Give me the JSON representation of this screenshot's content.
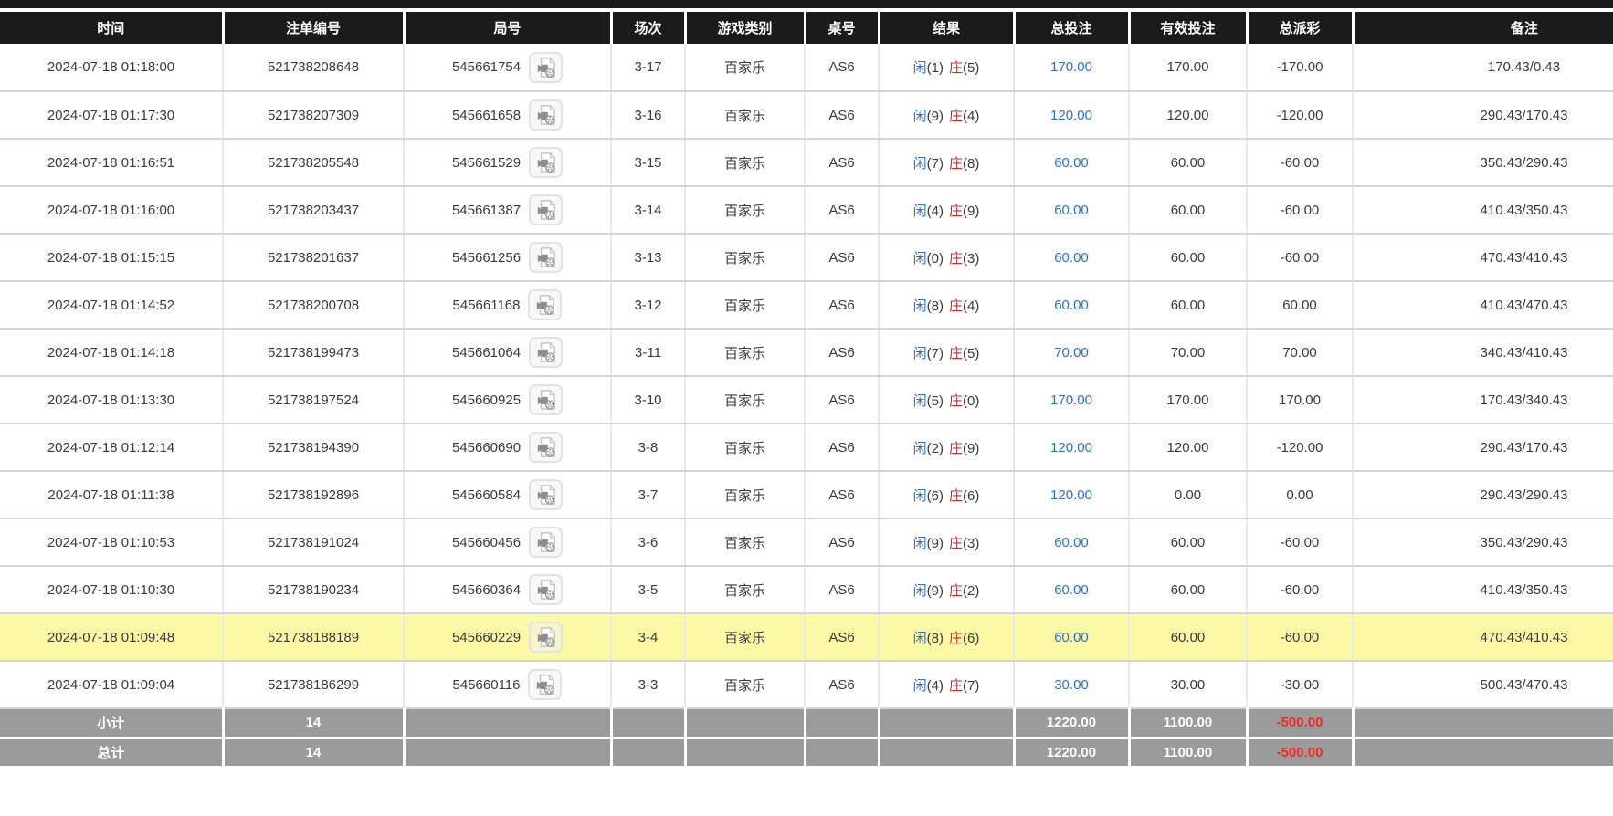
{
  "colors": {
    "header_bg": "#1b1b1b",
    "row_highlight": "#fbf9a5",
    "footer_bg": "#9b9b9b",
    "bet_blue": "#2d6fd2",
    "negative_red": "#e02b2b",
    "banker_red": "#d42a2a"
  },
  "table": {
    "columns": [
      {
        "key": "time",
        "label": "时间"
      },
      {
        "key": "bet-id",
        "label": "注单编号"
      },
      {
        "key": "round-id",
        "label": "局号"
      },
      {
        "key": "session",
        "label": "场次"
      },
      {
        "key": "game-type",
        "label": "游戏类别"
      },
      {
        "key": "table-no",
        "label": "桌号"
      },
      {
        "key": "result",
        "label": "结果"
      },
      {
        "key": "total-bet",
        "label": "总投注"
      },
      {
        "key": "valid-bet",
        "label": "有效投注"
      },
      {
        "key": "payout",
        "label": "总派彩"
      },
      {
        "key": "remark",
        "label": "备注"
      }
    ],
    "rows": [
      {
        "time": "2024-07-18 01:18:00",
        "bet_id": "521738208648",
        "round_id": "545661754",
        "session": "3-17",
        "game": "百家乐",
        "table_no": "AS6",
        "result_player": "闲(1)",
        "result_banker": "庄(5)",
        "total_bet": "170.00",
        "valid_bet": "170.00",
        "payout": "-170.00",
        "remark": "170.43/0.43",
        "highlighted": false
      },
      {
        "time": "2024-07-18 01:17:30",
        "bet_id": "521738207309",
        "round_id": "545661658",
        "session": "3-16",
        "game": "百家乐",
        "table_no": "AS6",
        "result_player": "闲(9)",
        "result_banker": "庄(4)",
        "total_bet": "120.00",
        "valid_bet": "120.00",
        "payout": "-120.00",
        "remark": "290.43/170.43",
        "highlighted": false
      },
      {
        "time": "2024-07-18 01:16:51",
        "bet_id": "521738205548",
        "round_id": "545661529",
        "session": "3-15",
        "game": "百家乐",
        "table_no": "AS6",
        "result_player": "闲(7)",
        "result_banker": "庄(8)",
        "total_bet": "60.00",
        "valid_bet": "60.00",
        "payout": "-60.00",
        "remark": "350.43/290.43",
        "highlighted": false
      },
      {
        "time": "2024-07-18 01:16:00",
        "bet_id": "521738203437",
        "round_id": "545661387",
        "session": "3-14",
        "game": "百家乐",
        "table_no": "AS6",
        "result_player": "闲(4)",
        "result_banker": "庄(9)",
        "total_bet": "60.00",
        "valid_bet": "60.00",
        "payout": "-60.00",
        "remark": "410.43/350.43",
        "highlighted": false
      },
      {
        "time": "2024-07-18 01:15:15",
        "bet_id": "521738201637",
        "round_id": "545661256",
        "session": "3-13",
        "game": "百家乐",
        "table_no": "AS6",
        "result_player": "闲(0)",
        "result_banker": "庄(3)",
        "total_bet": "60.00",
        "valid_bet": "60.00",
        "payout": "-60.00",
        "remark": "470.43/410.43",
        "highlighted": false
      },
      {
        "time": "2024-07-18 01:14:52",
        "bet_id": "521738200708",
        "round_id": "545661168",
        "session": "3-12",
        "game": "百家乐",
        "table_no": "AS6",
        "result_player": "闲(8)",
        "result_banker": "庄(4)",
        "total_bet": "60.00",
        "valid_bet": "60.00",
        "payout": "60.00",
        "remark": "410.43/470.43",
        "highlighted": false
      },
      {
        "time": "2024-07-18 01:14:18",
        "bet_id": "521738199473",
        "round_id": "545661064",
        "session": "3-11",
        "game": "百家乐",
        "table_no": "AS6",
        "result_player": "闲(7)",
        "result_banker": "庄(5)",
        "total_bet": "70.00",
        "valid_bet": "70.00",
        "payout": "70.00",
        "remark": "340.43/410.43",
        "highlighted": false
      },
      {
        "time": "2024-07-18 01:13:30",
        "bet_id": "521738197524",
        "round_id": "545660925",
        "session": "3-10",
        "game": "百家乐",
        "table_no": "AS6",
        "result_player": "闲(5)",
        "result_banker": "庄(0)",
        "total_bet": "170.00",
        "valid_bet": "170.00",
        "payout": "170.00",
        "remark": "170.43/340.43",
        "highlighted": false
      },
      {
        "time": "2024-07-18 01:12:14",
        "bet_id": "521738194390",
        "round_id": "545660690",
        "session": "3-8",
        "game": "百家乐",
        "table_no": "AS6",
        "result_player": "闲(2)",
        "result_banker": "庄(9)",
        "total_bet": "120.00",
        "valid_bet": "120.00",
        "payout": "-120.00",
        "remark": "290.43/170.43",
        "highlighted": false
      },
      {
        "time": "2024-07-18 01:11:38",
        "bet_id": "521738192896",
        "round_id": "545660584",
        "session": "3-7",
        "game": "百家乐",
        "table_no": "AS6",
        "result_player": "闲(6)",
        "result_banker": "庄(6)",
        "total_bet": "120.00",
        "valid_bet": "0.00",
        "payout": "0.00",
        "remark": "290.43/290.43",
        "highlighted": false
      },
      {
        "time": "2024-07-18 01:10:53",
        "bet_id": "521738191024",
        "round_id": "545660456",
        "session": "3-6",
        "game": "百家乐",
        "table_no": "AS6",
        "result_player": "闲(9)",
        "result_banker": "庄(3)",
        "total_bet": "60.00",
        "valid_bet": "60.00",
        "payout": "-60.00",
        "remark": "350.43/290.43",
        "highlighted": false
      },
      {
        "time": "2024-07-18 01:10:30",
        "bet_id": "521738190234",
        "round_id": "545660364",
        "session": "3-5",
        "game": "百家乐",
        "table_no": "AS6",
        "result_player": "闲(9)",
        "result_banker": "庄(2)",
        "total_bet": "60.00",
        "valid_bet": "60.00",
        "payout": "-60.00",
        "remark": "410.43/350.43",
        "highlighted": false
      },
      {
        "time": "2024-07-18 01:09:48",
        "bet_id": "521738188189",
        "round_id": "545660229",
        "session": "3-4",
        "game": "百家乐",
        "table_no": "AS6",
        "result_player": "闲(8)",
        "result_banker": "庄(6)",
        "total_bet": "60.00",
        "valid_bet": "60.00",
        "payout": "-60.00",
        "remark": "470.43/410.43",
        "highlighted": true
      },
      {
        "time": "2024-07-18 01:09:04",
        "bet_id": "521738186299",
        "round_id": "545660116",
        "session": "3-3",
        "game": "百家乐",
        "table_no": "AS6",
        "result_player": "闲(4)",
        "result_banker": "庄(7)",
        "total_bet": "30.00",
        "valid_bet": "30.00",
        "payout": "-30.00",
        "remark": "500.43/470.43",
        "highlighted": false
      }
    ],
    "footer_rows": [
      {
        "label": "小计",
        "count": "14",
        "total_bet": "1220.00",
        "valid_bet": "1100.00",
        "payout": "-500.00"
      },
      {
        "label": "总计",
        "count": "14",
        "total_bet": "1220.00",
        "valid_bet": "1100.00",
        "payout": "-500.00"
      }
    ]
  }
}
